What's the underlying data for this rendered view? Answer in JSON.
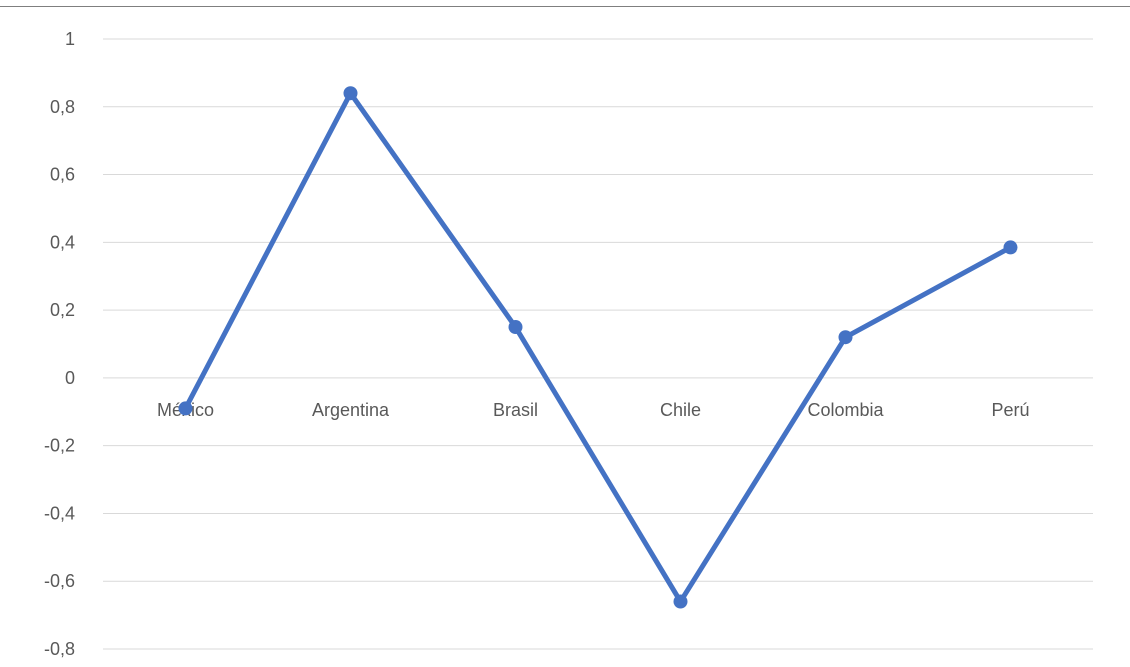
{
  "chart_data": {
    "type": "line",
    "categories": [
      "México",
      "Argentina",
      "Brasil",
      "Chile",
      "Colombia",
      "Perú"
    ],
    "series": [
      {
        "values": [
          -0.09,
          0.84,
          0.15,
          -0.66,
          0.12,
          0.385
        ]
      }
    ],
    "ylim": [
      -0.8,
      1
    ],
    "yticks": [
      1,
      0.8,
      0.6,
      0.4,
      0.2,
      0,
      -0.2,
      -0.4,
      -0.6,
      -0.8
    ],
    "ytick_labels": [
      "1",
      "0,8",
      "0,6",
      "0,4",
      "0,2",
      "0",
      "-0,2",
      "-0,4",
      "-0,6",
      "-0,8"
    ],
    "grid": true,
    "legend": "none",
    "colors": {
      "series": "#4472c4",
      "grid": "#d9d9d9",
      "text": "#595959",
      "frame": "#7f7f7f"
    }
  }
}
